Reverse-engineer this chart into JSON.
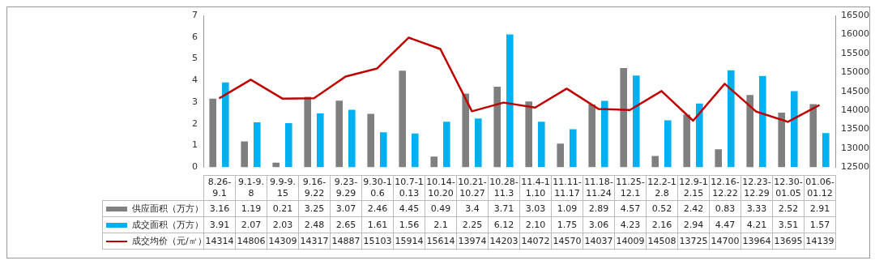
{
  "chart_data": {
    "type": "bar",
    "categories": [
      "8.26-9.1",
      "9.1-9.8",
      "9.9-9.15",
      "9.16-9.22",
      "9.23-9.29",
      "9.30-10.6",
      "10.7-10.13",
      "10.14-10.20",
      "10.21-10.27",
      "10.28-11.3",
      "11.4-11.10",
      "11.11-11.17",
      "11.18-11.24",
      "11.25-12.1",
      "12.2-12.8",
      "12.9-12.15",
      "12.16-12.22",
      "12.23-12.29",
      "12.30-01.05",
      "01.06-01.12"
    ],
    "series": [
      {
        "name": "供应面积（万方）",
        "color": "#7f7f7f",
        "values": [
          3.16,
          1.19,
          0.21,
          3.25,
          3.07,
          2.46,
          4.45,
          0.49,
          3.4,
          3.71,
          3.03,
          1.09,
          2.89,
          4.57,
          0.52,
          2.42,
          0.83,
          3.33,
          2.52,
          2.91
        ],
        "value_labels": [
          "3.16",
          "1.19",
          "0.21",
          "3.25",
          "3.07",
          "2.46",
          "4.45",
          "0.49",
          "3.4",
          "3.71",
          "3.03",
          "1.09",
          "2.89",
          "4.57",
          "0.52",
          "2.42",
          "0.83",
          "3.33",
          "2.52",
          "2.91"
        ]
      },
      {
        "name": "成交面积（万方）",
        "color": "#00b0f0",
        "values": [
          3.91,
          2.07,
          2.03,
          2.48,
          2.65,
          1.61,
          1.56,
          2.1,
          2.25,
          6.12,
          2.1,
          1.75,
          3.06,
          4.23,
          2.16,
          2.94,
          4.47,
          4.21,
          3.51,
          1.57
        ],
        "value_labels": [
          "3.91",
          "2.07",
          "2.03",
          "2.48",
          "2.65",
          "1.61",
          "1.56",
          "2.1",
          "2.25",
          "6.12",
          "2.10",
          "1.75",
          "3.06",
          "4.23",
          "2.16",
          "2.94",
          "4.47",
          "4.21",
          "3.51",
          "1.57"
        ]
      },
      {
        "name": "成交均价（元/㎡）",
        "type": "line",
        "axis": "y2",
        "color": "#c00000",
        "values": [
          14314,
          14806,
          14309,
          14317,
          14887,
          15103,
          15914,
          15614,
          13974,
          14203,
          14072,
          14570,
          14037,
          14009,
          14508,
          13725,
          14700,
          13964,
          13695,
          14139
        ],
        "value_labels": [
          "14314",
          "14806",
          "14309",
          "14317",
          "14887",
          "15103",
          "15914",
          "15614",
          "13974",
          "14203",
          "14072",
          "14570",
          "14037",
          "14009",
          "14508",
          "13725",
          "14700",
          "13964",
          "13695",
          "14139"
        ]
      }
    ],
    "ylim": [
      0,
      7
    ],
    "yticks": [
      0,
      1,
      2,
      3,
      4,
      5,
      6,
      7
    ],
    "y2lim": [
      12500,
      16500
    ],
    "y2ticks": [
      12500,
      13000,
      13500,
      14000,
      14500,
      15000,
      15500,
      16000,
      16500
    ],
    "grid": false,
    "legend": "bottom",
    "marker": "none"
  }
}
